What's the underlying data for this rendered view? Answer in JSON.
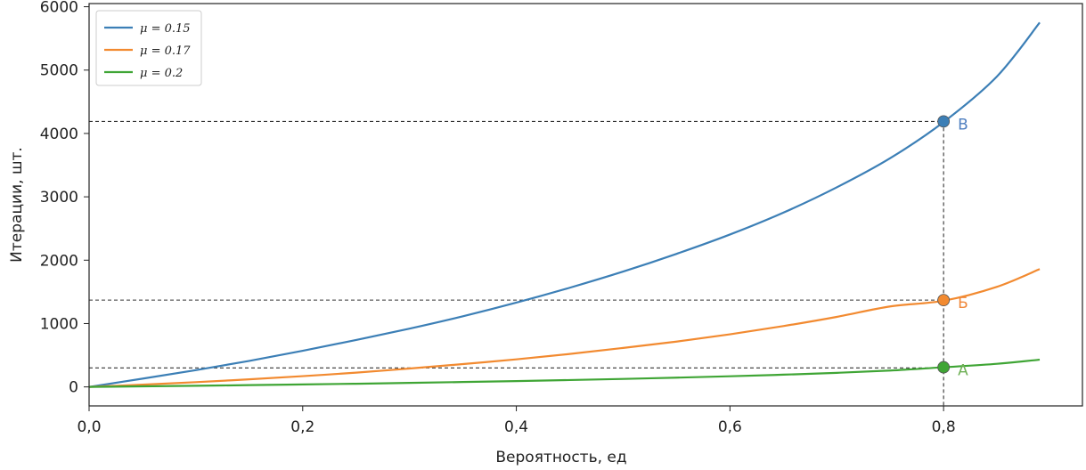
{
  "chart_data": {
    "type": "line",
    "title": "",
    "xlabel": "Вероятность, ед",
    "ylabel": "Итерации, шт.",
    "xlim": [
      0,
      0.93
    ],
    "ylim": [
      -300,
      6050
    ],
    "x_ticks": [
      0,
      0.2,
      0.4,
      0.6,
      0.8
    ],
    "x_tick_labels": [
      "0,0",
      "0,2",
      "0,4",
      "0,6",
      "0,8"
    ],
    "y_ticks": [
      0,
      1000,
      2000,
      3000,
      4000,
      5000,
      6000
    ],
    "y_tick_labels": [
      "0",
      "1000",
      "2000",
      "3000",
      "4000",
      "5000",
      "6000"
    ],
    "grid": false,
    "legend_position": "top-left",
    "series": [
      {
        "name": "μ = 0.15",
        "color": "#3c7fb6",
        "x": [
          0,
          0.05,
          0.1,
          0.15,
          0.2,
          0.25,
          0.3,
          0.35,
          0.4,
          0.45,
          0.5,
          0.55,
          0.6,
          0.65,
          0.7,
          0.75,
          0.8,
          0.85,
          0.89
        ],
        "y": [
          0,
          130,
          265,
          410,
          570,
          740,
          920,
          1115,
          1330,
          1565,
          1820,
          2100,
          2405,
          2750,
          3150,
          3610,
          4180,
          4900,
          5750
        ]
      },
      {
        "name": "μ = 0.17",
        "color": "#f28a30",
        "x": [
          0,
          0.05,
          0.1,
          0.15,
          0.2,
          0.25,
          0.3,
          0.35,
          0.4,
          0.45,
          0.5,
          0.55,
          0.6,
          0.65,
          0.7,
          0.75,
          0.8,
          0.85,
          0.89
        ],
        "y": [
          0,
          35,
          75,
          120,
          170,
          225,
          290,
          360,
          435,
          520,
          615,
          715,
          830,
          960,
          1105,
          1270,
          1360,
          1580,
          1860
        ]
      },
      {
        "name": "μ = 0.2",
        "color": "#3fa535",
        "x": [
          0,
          0.05,
          0.1,
          0.15,
          0.2,
          0.25,
          0.3,
          0.35,
          0.4,
          0.45,
          0.5,
          0.55,
          0.6,
          0.65,
          0.7,
          0.75,
          0.8,
          0.85,
          0.89
        ],
        "y": [
          0,
          9,
          18,
          28,
          39,
          50,
          63,
          77,
          92,
          108,
          126,
          146,
          168,
          193,
          222,
          258,
          310,
          365,
          430
        ]
      }
    ],
    "reference_lines": {
      "x": 0.8,
      "y": [
        4190,
        1370,
        300
      ]
    },
    "points": [
      {
        "label": "В",
        "x": 0.8,
        "y": 4190,
        "color": "#3c7fb6",
        "label_color": "#4f7fc0"
      },
      {
        "label": "Б",
        "x": 0.8,
        "y": 1370,
        "color": "#f28a30",
        "label_color": "#f0883a"
      },
      {
        "label": "А",
        "x": 0.8,
        "y": 310,
        "color": "#3fa535",
        "label_color": "#6fb056"
      }
    ]
  }
}
